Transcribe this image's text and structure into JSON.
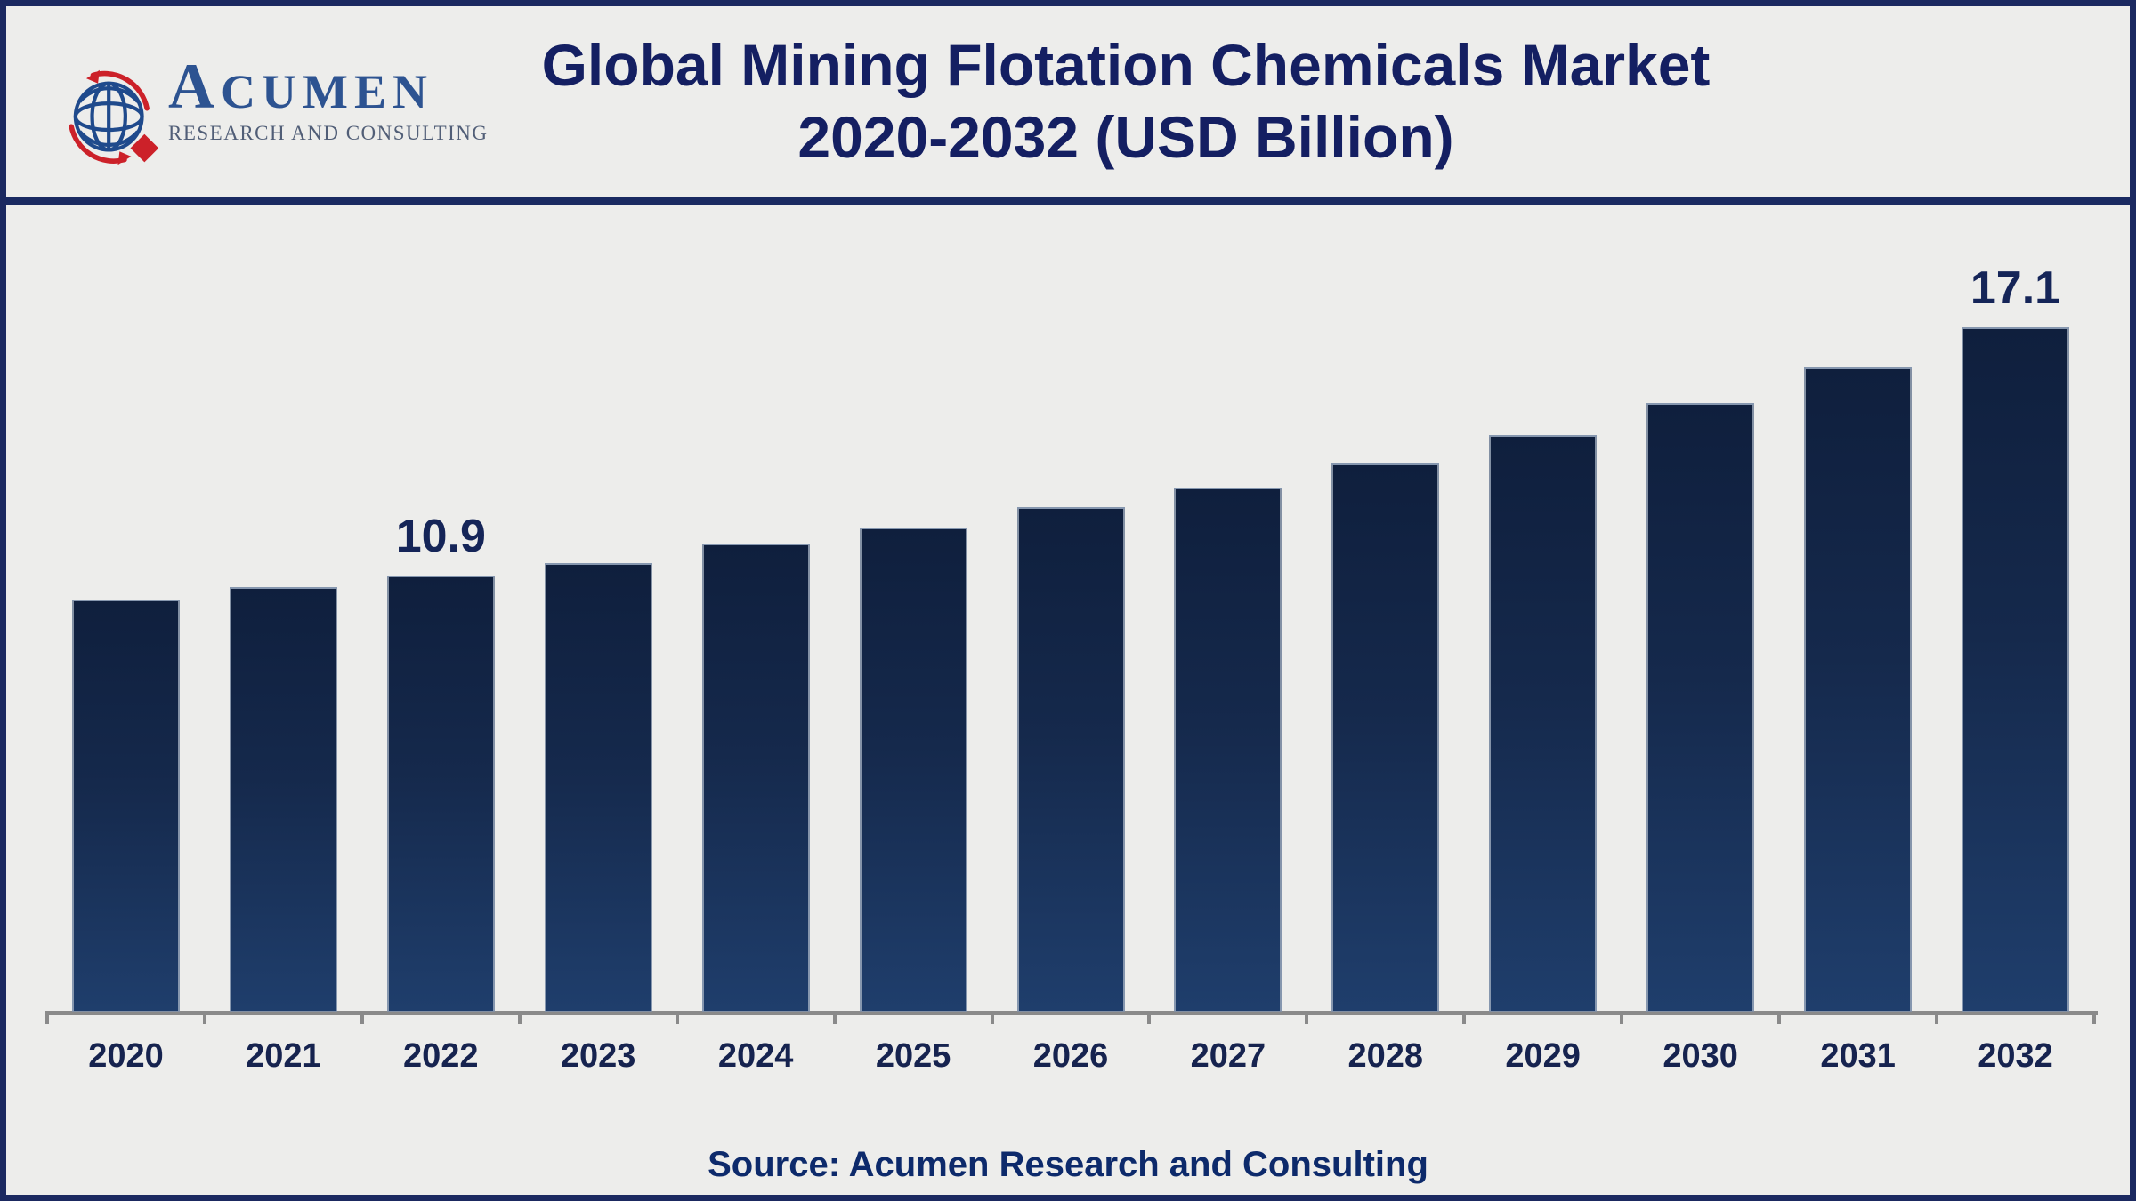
{
  "header": {
    "logo": {
      "name_initial": "A",
      "name_rest": "CUMEN",
      "subtitle": "RESEARCH AND CONSULTING"
    },
    "title_line1": "Global Mining Flotation Chemicals Market",
    "title_line2": "2020-2032 (USD Billion)"
  },
  "chart_data": {
    "type": "bar",
    "title": "Global Mining Flotation Chemicals Market 2020-2032 (USD Billion)",
    "unit": "USD Billion",
    "categories": [
      "2020",
      "2021",
      "2022",
      "2023",
      "2024",
      "2025",
      "2026",
      "2027",
      "2028",
      "2029",
      "2030",
      "2031",
      "2032"
    ],
    "values": [
      10.3,
      10.6,
      10.9,
      11.2,
      11.7,
      12.1,
      12.6,
      13.1,
      13.7,
      14.4,
      15.2,
      16.1,
      17.1
    ],
    "data_labels": {
      "2022": "10.9",
      "2032": "17.1"
    },
    "xlabel": "",
    "ylabel": "",
    "ylim": [
      0,
      20
    ],
    "grid": false,
    "legend": "none",
    "colors": {
      "bar_gradient_top": "#0f1f3d",
      "bar_gradient_bottom": "#1f3e6c",
      "bar_edge": "#aab6c6",
      "axis": "#8a8a8a",
      "label_text": "#152558",
      "title_text": "#141f62"
    }
  },
  "footer": {
    "source": "Source: Acumen Research and Consulting"
  },
  "brand_colors": {
    "navy_border": "#1b2960",
    "logo_blue": "#2d5391",
    "logo_red": "#cc2129",
    "logo_sub_gray": "#515e77",
    "background": "#ededeb"
  }
}
